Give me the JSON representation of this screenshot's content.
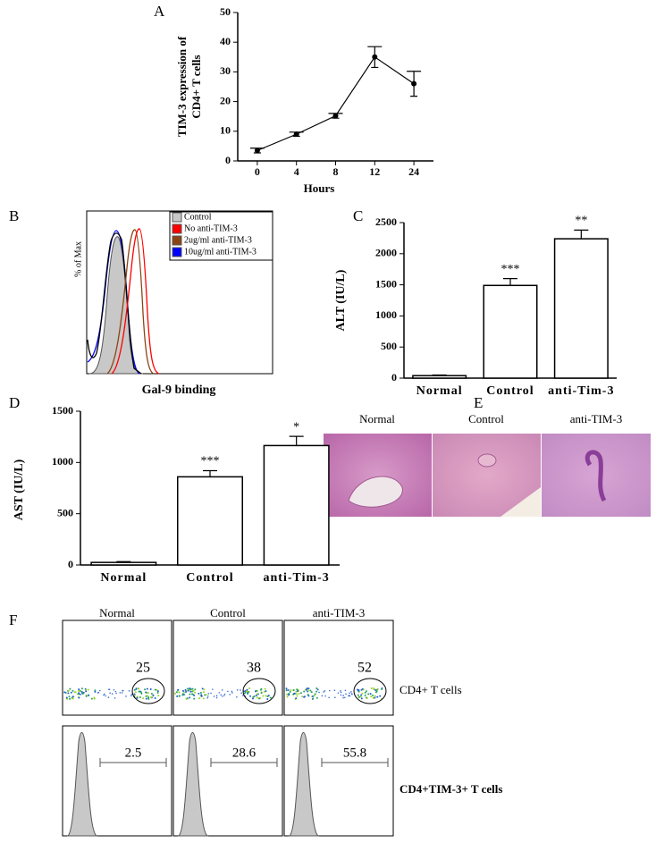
{
  "chart_data": [
    {
      "type": "line",
      "panel": "A",
      "categories": [
        "0",
        "4",
        "8",
        "12",
        "24"
      ],
      "values": [
        3.5,
        9,
        15.2,
        35,
        26
      ],
      "errors": [
        0.8,
        0.7,
        0.8,
        3.5,
        4.2
      ],
      "ylim": [
        0,
        50
      ],
      "yticks": [
        0,
        10,
        20,
        30,
        40,
        50
      ],
      "color": "#000000",
      "xlabel": "Hours",
      "ylabel": [
        "TIM-3 expression of",
        "CD4+ T cells"
      ]
    },
    {
      "type": "bar",
      "panel": "C",
      "categories": [
        "Normal",
        "Control",
        "anti-Tim-3"
      ],
      "values": [
        40,
        1490,
        2240
      ],
      "errors": [
        10,
        110,
        140
      ],
      "significance": [
        null,
        "***",
        "**"
      ],
      "ylim": [
        0,
        2500
      ],
      "yticks": [
        0,
        500,
        1000,
        1500,
        2000,
        2500
      ],
      "color": "#ffffff",
      "ylabel": "ALT (IU/L)"
    },
    {
      "type": "bar",
      "panel": "D",
      "categories": [
        "Normal",
        "Control",
        "anti-Tim-3"
      ],
      "values": [
        25,
        860,
        1165
      ],
      "errors": [
        8,
        60,
        90
      ],
      "significance": [
        null,
        "***",
        "*"
      ],
      "ylim": [
        0,
        1500
      ],
      "yticks": [
        0,
        500,
        1000,
        1500
      ],
      "color": "#ffffff",
      "ylabel": "AST (IU/L)"
    }
  ],
  "flow_histogram": {
    "panel": "B",
    "xlabel": "Gal-9 binding",
    "ylabel": "% of Max",
    "legend": [
      {
        "name": "Control",
        "color": "#c8c8c8"
      },
      {
        "name": "No anti-TIM-3",
        "color": "#ff0000"
      },
      {
        "name": "2ug/ml anti-TIM-3",
        "color": "#8b4513"
      },
      {
        "name": "10ug/ml anti-TIM-3",
        "color": "#0000ff"
      }
    ]
  },
  "histology": {
    "panel": "E",
    "columns": [
      "Normal",
      "Control",
      "anti-TIM-3"
    ]
  },
  "flow_plots": {
    "panel": "F",
    "columns": [
      "Normal",
      "Control",
      "anti-TIM-3"
    ],
    "rows": [
      {
        "label": "CD4+ T cells",
        "values": [
          25,
          38,
          52
        ]
      },
      {
        "label": "CD4+TIM-3+ T cells",
        "values": [
          2.5,
          28.6,
          55.8
        ]
      }
    ]
  }
}
